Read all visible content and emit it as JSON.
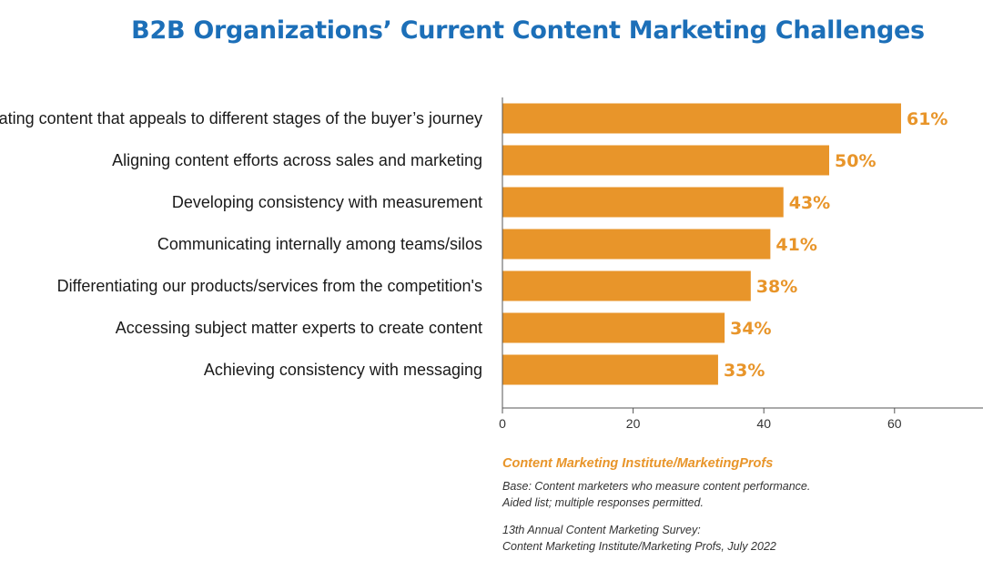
{
  "chart_data": {
    "type": "bar",
    "orientation": "horizontal",
    "title": "B2B Organizations’ Current Content Marketing Challenges",
    "categories": [
      "Creating content that appeals to different stages of the buyer’s journey",
      "Aligning content efforts across sales and marketing",
      "Developing consistency with measurement",
      "Communicating internally among teams/silos",
      "Differentiating our products/services from the competition's",
      "Accessing subject matter experts to create content",
      "Achieving consistency with messaging"
    ],
    "values": [
      61,
      50,
      43,
      41,
      38,
      34,
      33
    ],
    "value_labels": [
      "61%",
      "50%",
      "43%",
      "41%",
      "38%",
      "34%",
      "33%"
    ],
    "xlim": [
      0,
      70
    ],
    "xticks": [
      0,
      20,
      40,
      60
    ],
    "xtick_labels": [
      "0",
      "20",
      "40",
      "60"
    ],
    "grid": false,
    "colors": {
      "bar": "#e8952a",
      "title": "#1c6fb8",
      "value_label": "#e8952a",
      "axis": "#555555"
    }
  },
  "notes": {
    "source": "Content Marketing Institute/MarketingProfs",
    "base_line1": "Base: Content marketers who measure content performance.",
    "base_line2": "Aided list; multiple responses permitted.",
    "survey_line1": "13th Annual Content Marketing Survey:",
    "survey_line2": "Content Marketing Institute/Marketing Profs, July 2022"
  }
}
